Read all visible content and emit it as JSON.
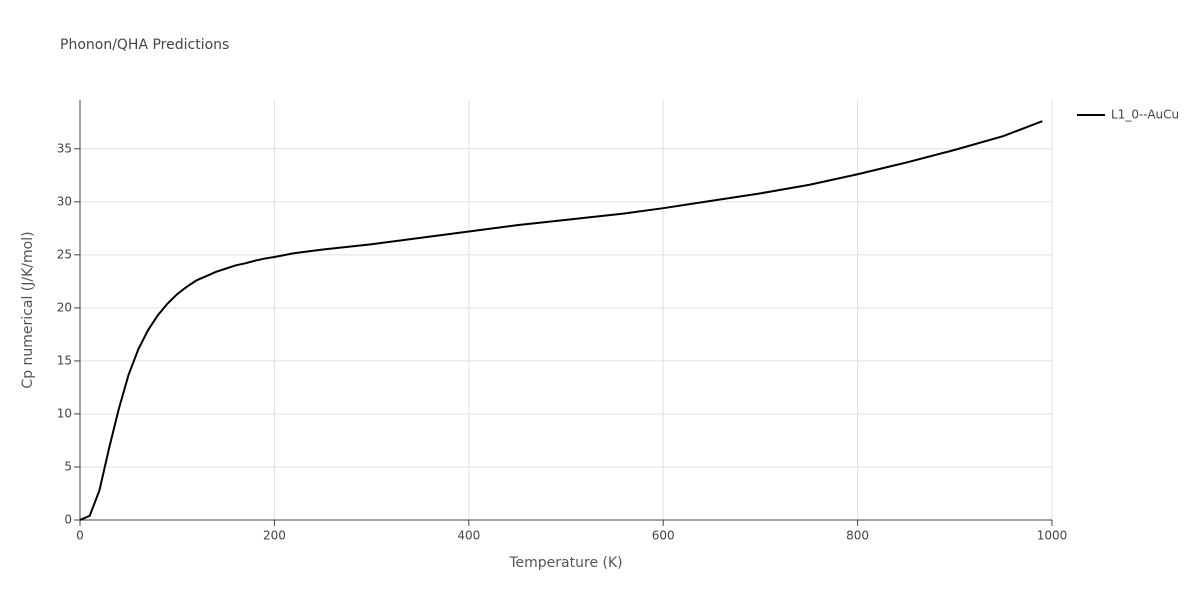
{
  "chart_data": {
    "type": "line",
    "title": "Phonon/QHA Predictions",
    "x_label": "Temperature (K)",
    "y_label": "Cp numerical (J/K/mol)",
    "x": [
      0,
      10,
      20,
      30,
      40,
      50,
      60,
      70,
      80,
      90,
      100,
      110,
      120,
      130,
      140,
      150,
      160,
      170,
      180,
      190,
      200,
      220,
      250,
      300,
      350,
      400,
      450,
      500,
      560,
      600,
      650,
      700,
      750,
      800,
      850,
      900,
      950,
      990
    ],
    "series": [
      {
        "name": "L1_0--AuCu",
        "color": "#000000",
        "values": [
          0,
          0.4,
          2.8,
          6.8,
          10.5,
          13.7,
          16.1,
          17.9,
          19.3,
          20.4,
          21.3,
          22.0,
          22.6,
          23.0,
          23.4,
          23.7,
          24.0,
          24.2,
          24.45,
          24.65,
          24.8,
          25.15,
          25.5,
          26.0,
          26.6,
          27.2,
          27.8,
          28.3,
          28.9,
          29.4,
          30.1,
          30.8,
          31.6,
          32.6,
          33.7,
          34.9,
          36.2,
          37.6
        ]
      }
    ],
    "xlim": [
      0,
      1000
    ],
    "xticks": [
      0,
      200,
      400,
      600,
      800,
      1000
    ],
    "ylim": [
      0,
      39.6
    ],
    "yticks": [
      0,
      5,
      10,
      15,
      20,
      25,
      30,
      35
    ],
    "grid": true,
    "legend": "right"
  }
}
